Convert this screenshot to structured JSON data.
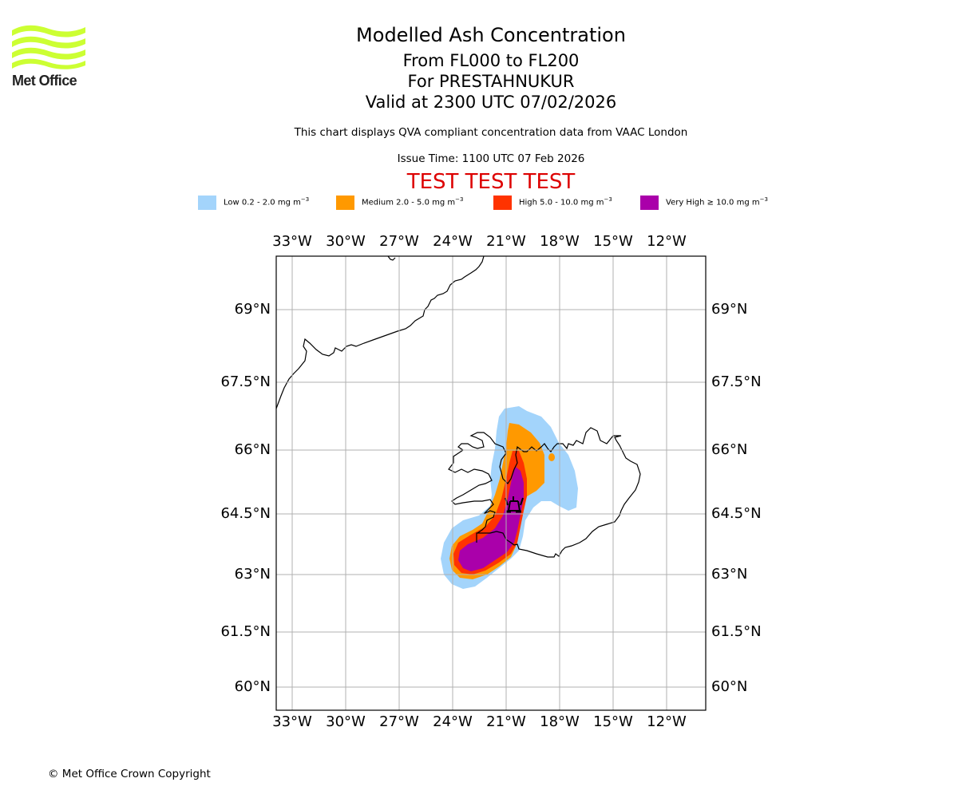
{
  "logo": {
    "name": "Met Office",
    "icon": "met-office-waves-logo",
    "color": "#ccff33"
  },
  "header": {
    "title": "Modelled Ash Concentration",
    "level_range": "From FL000 to FL200",
    "volcano": "For PRESTAHNUKUR",
    "valid_time": "Valid at 2300 UTC 07/02/2026",
    "description": "This chart displays QVA compliant concentration data from VAAC London",
    "issue_time": "Issue Time: 1100 UTC 07 Feb 2026",
    "test_banner": "TEST TEST TEST"
  },
  "legend": [
    {
      "label": "Low 0.2 - 2.0 mg m",
      "unit_exp": "−3",
      "color": "#a3d4fb"
    },
    {
      "label": "Medium 2.0 - 5.0 mg m",
      "unit_exp": "−3",
      "color": "#ff9900"
    },
    {
      "label": "High 5.0 - 10.0 mg m",
      "unit_exp": "−3",
      "color": "#ff3300"
    },
    {
      "label": "Very High ≥ 10.0 mg m",
      "unit_exp": "−3",
      "color": "#aa00aa"
    }
  ],
  "map": {
    "lon_ticks": [
      "33°W",
      "30°W",
      "27°W",
      "24°W",
      "21°W",
      "18°W",
      "15°W",
      "12°W"
    ],
    "lat_ticks": [
      "69°N",
      "67.5°N",
      "66°N",
      "64.5°N",
      "63°N",
      "61.5°N",
      "60°N"
    ],
    "volcano_marker": "volcano-icon",
    "colors": {
      "grid": "#b0b0b0",
      "coast": "#000000",
      "frame": "#000000"
    }
  },
  "footer": {
    "copyright": "© Met Office Crown Copyright"
  }
}
